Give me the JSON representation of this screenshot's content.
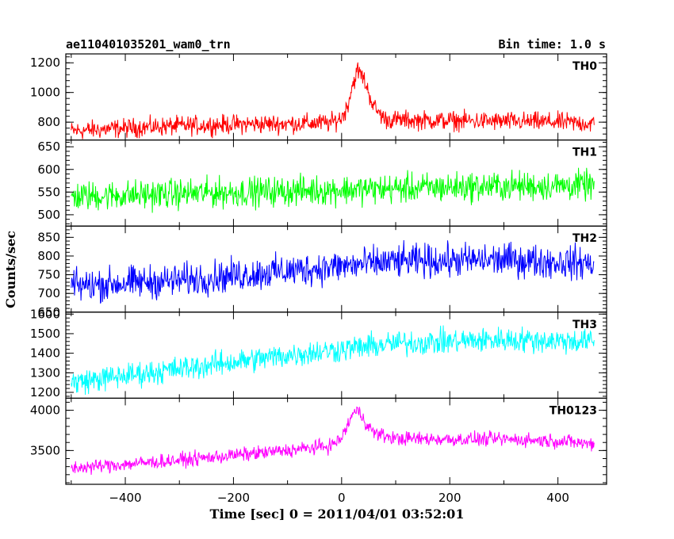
{
  "chart_data": {
    "type": "line",
    "title": "ae110401035201_wam0_trn",
    "bin_time_label": "Bin time: 1.0 s",
    "xlabel": "Time [sec] 0 = 2011/04/01 03:52:01",
    "ylabel": "Counts/sec",
    "xlim": [
      -510,
      490
    ],
    "x_ticks": [
      -400,
      -200,
      0,
      200,
      400
    ],
    "x_range": [
      -500,
      467
    ],
    "panels": [
      {
        "name": "TH0",
        "color": "#ff0000",
        "ylim": [
          680,
          1260
        ],
        "y_ticks": [
          800,
          1000,
          1200
        ],
        "x": [
          -500,
          -400,
          -300,
          -200,
          -100,
          -20,
          0,
          10,
          20,
          30,
          40,
          50,
          60,
          70,
          80,
          100,
          200,
          300,
          400,
          467
        ],
        "values": [
          740,
          760,
          775,
          785,
          790,
          795,
          830,
          900,
          1050,
          1150,
          1100,
          1000,
          900,
          860,
          820,
          815,
          810,
          805,
          800,
          790
        ],
        "noise": 55
      },
      {
        "name": "TH1",
        "color": "#00ff00",
        "ylim": [
          475,
          665
        ],
        "y_ticks": [
          500,
          550,
          600,
          650
        ],
        "x": [
          -500,
          -250,
          0,
          250,
          467
        ],
        "values": [
          540,
          548,
          555,
          562,
          565
        ],
        "noise": 28
      },
      {
        "name": "TH2",
        "color": "#0000ff",
        "ylim": [
          650,
          880
        ],
        "y_ticks": [
          650,
          700,
          750,
          800,
          850
        ],
        "x": [
          -500,
          -300,
          -100,
          100,
          300,
          467
        ],
        "values": [
          720,
          735,
          760,
          785,
          790,
          780
        ],
        "noise": 38
      },
      {
        "name": "TH3",
        "color": "#00ffff",
        "ylim": [
          1170,
          1610
        ],
        "y_ticks": [
          1200,
          1300,
          1400,
          1500,
          1600
        ],
        "x": [
          -500,
          -300,
          -100,
          100,
          300,
          467
        ],
        "values": [
          1250,
          1320,
          1390,
          1450,
          1470,
          1460
        ],
        "noise": 55
      },
      {
        "name": "TH0123",
        "color": "#ff00ff",
        "ylim": [
          3080,
          4150
        ],
        "y_ticks": [
          3500,
          4000
        ],
        "x": [
          -500,
          -300,
          -100,
          -20,
          0,
          10,
          20,
          30,
          40,
          50,
          60,
          70,
          80,
          100,
          200,
          300,
          400,
          467
        ],
        "values": [
          3280,
          3380,
          3500,
          3560,
          3650,
          3800,
          3950,
          4000,
          3900,
          3800,
          3720,
          3700,
          3680,
          3650,
          3640,
          3640,
          3620,
          3580
        ],
        "noise": 75
      }
    ]
  }
}
